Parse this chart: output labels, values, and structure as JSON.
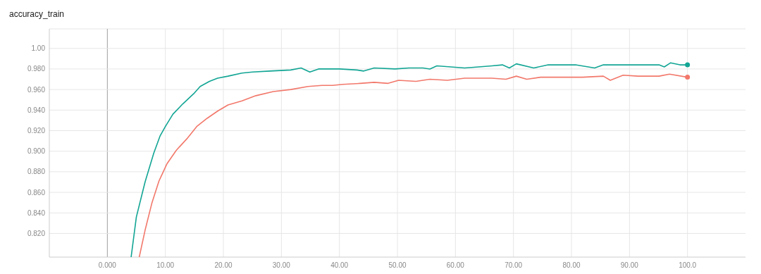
{
  "chart_data": {
    "type": "line",
    "title": "accuracy_train",
    "xlim": [
      -10,
      110
    ],
    "xticks": [
      {
        "value": 0,
        "label": "0.000"
      },
      {
        "value": 10,
        "label": "10.00"
      },
      {
        "value": 20,
        "label": "20.00"
      },
      {
        "value": 30,
        "label": "30.00"
      },
      {
        "value": 40,
        "label": "40.00"
      },
      {
        "value": 50,
        "label": "50.00"
      },
      {
        "value": 60,
        "label": "60.00"
      },
      {
        "value": 70,
        "label": "70.00"
      },
      {
        "value": 80,
        "label": "80.00"
      },
      {
        "value": 90,
        "label": "90.00"
      },
      {
        "value": 100,
        "label": "100.0"
      }
    ],
    "ylim": [
      0.797,
      1.019
    ],
    "yticks": [
      {
        "value": 0.82,
        "label": "0.820"
      },
      {
        "value": 0.84,
        "label": "0.840"
      },
      {
        "value": 0.86,
        "label": "0.860"
      },
      {
        "value": 0.88,
        "label": "0.880"
      },
      {
        "value": 0.9,
        "label": "0.900"
      },
      {
        "value": 0.92,
        "label": "0.920"
      },
      {
        "value": 0.94,
        "label": "0.940"
      },
      {
        "value": 0.96,
        "label": "0.960"
      },
      {
        "value": 0.98,
        "label": "0.980"
      },
      {
        "value": 1,
        "label": "1.00"
      }
    ],
    "grid": true,
    "line_style": "solid",
    "series": [
      {
        "color": "#12a594",
        "x": [
          4.1,
          5,
          6.5,
          8,
          9.1,
          10,
          11.3,
          13,
          14.9,
          16,
          17.6,
          19,
          20.8,
          23.2,
          25,
          28,
          31.6,
          33.4,
          34.9,
          36.4,
          40,
          43,
          44.2,
          46,
          49.6,
          52,
          54.4,
          55.6,
          56.8,
          59.2,
          61.6,
          64,
          66.3,
          68.1,
          69.3,
          70.5,
          73.5,
          76,
          78.3,
          80.7,
          84,
          85.5,
          90.3,
          95.1,
          96,
          97.1,
          98.7,
          100
        ],
        "values": [
          0.797,
          0.836,
          0.87,
          0.898,
          0.915,
          0.924,
          0.936,
          0.946,
          0.956,
          0.963,
          0.968,
          0.971,
          0.973,
          0.976,
          0.977,
          0.978,
          0.979,
          0.981,
          0.977,
          0.98,
          0.98,
          0.979,
          0.978,
          0.981,
          0.98,
          0.981,
          0.981,
          0.98,
          0.983,
          0.982,
          0.981,
          0.982,
          0.983,
          0.984,
          0.981,
          0.985,
          0.981,
          0.984,
          0.984,
          0.984,
          0.981,
          0.984,
          0.984,
          0.984,
          0.982,
          0.986,
          0.984,
          0.984
        ]
      },
      {
        "color": "#f2786b",
        "x": [
          5.5,
          6.5,
          7.7,
          8.9,
          10.3,
          11.9,
          13.7,
          15.4,
          17.2,
          19,
          20.8,
          23.2,
          25.6,
          28.6,
          31.6,
          34.6,
          37,
          38.8,
          40.6,
          43.6,
          46,
          48.4,
          50.2,
          53.2,
          55.6,
          58.6,
          61.6,
          64,
          66.3,
          68.7,
          70.5,
          72.3,
          74.7,
          78.3,
          81.9,
          85.5,
          86.7,
          88.9,
          91.5,
          95.1,
          96.9,
          100
        ],
        "values": [
          0.797,
          0.823,
          0.85,
          0.871,
          0.888,
          0.901,
          0.912,
          0.924,
          0.932,
          0.939,
          0.945,
          0.949,
          0.954,
          0.958,
          0.96,
          0.963,
          0.964,
          0.964,
          0.965,
          0.966,
          0.967,
          0.966,
          0.969,
          0.968,
          0.97,
          0.969,
          0.971,
          0.971,
          0.971,
          0.97,
          0.973,
          0.97,
          0.972,
          0.972,
          0.972,
          0.973,
          0.969,
          0.974,
          0.973,
          0.973,
          0.975,
          0.972
        ]
      }
    ]
  }
}
